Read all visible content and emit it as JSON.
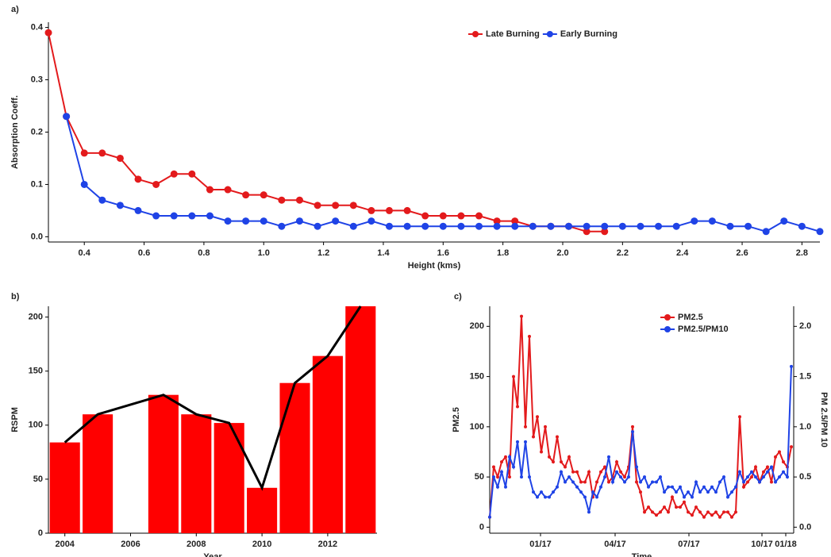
{
  "chart_data": [
    {
      "type": "line",
      "label": "a)",
      "x_label": "Height (kms)",
      "y_label": "Absorption Coeff.",
      "x": [
        0.28,
        0.34,
        0.4,
        0.46,
        0.52,
        0.58,
        0.64,
        0.7,
        0.76,
        0.82,
        0.88,
        0.94,
        1.0,
        1.06,
        1.12,
        1.18,
        1.24,
        1.3,
        1.36,
        1.42,
        1.48,
        1.54,
        1.6,
        1.66,
        1.72,
        1.78,
        1.84,
        1.9,
        1.96,
        2.02,
        2.08,
        2.14,
        2.2,
        2.26,
        2.32,
        2.38,
        2.44,
        2.5,
        2.56,
        2.62,
        2.68,
        2.74,
        2.8,
        2.86
      ],
      "series": [
        {
          "name": "Late Burning",
          "color": "#e31a1c",
          "values": [
            0.39,
            0.23,
            0.16,
            0.16,
            0.15,
            0.11,
            0.1,
            0.12,
            0.12,
            0.09,
            0.09,
            0.08,
            0.08,
            0.07,
            0.07,
            0.06,
            0.06,
            0.06,
            0.05,
            0.05,
            0.05,
            0.04,
            0.04,
            0.04,
            0.04,
            0.03,
            0.03,
            0.02,
            0.02,
            0.02,
            0.01,
            0.01,
            null,
            null,
            null,
            null,
            null,
            null,
            null,
            null,
            null,
            null,
            null,
            null
          ]
        },
        {
          "name": "Early Burning",
          "color": "#1f43e6",
          "values": [
            null,
            0.23,
            0.1,
            0.07,
            0.06,
            0.05,
            0.04,
            0.04,
            0.04,
            0.04,
            0.03,
            0.03,
            0.03,
            0.02,
            0.03,
            0.02,
            0.03,
            0.02,
            0.03,
            0.02,
            0.02,
            0.02,
            0.02,
            0.02,
            0.02,
            0.02,
            0.02,
            0.02,
            0.02,
            0.02,
            0.02,
            0.02,
            0.02,
            0.02,
            0.02,
            0.02,
            0.03,
            0.03,
            0.02,
            0.02,
            0.01,
            0.03,
            0.02,
            0.01
          ]
        }
      ],
      "xlim": [
        0.28,
        2.86
      ],
      "xticks": [
        0.4,
        0.6,
        0.8,
        {
          "value": 1,
          "label": "1.0"
        },
        1.2,
        1.4,
        1.6,
        1.8,
        {
          "value": 2,
          "label": "2.0"
        },
        2.2,
        2.4,
        2.6,
        2.8
      ],
      "ylim": [
        -0.01,
        0.41
      ],
      "yticks": [
        {
          "value": 0,
          "label": "0.0"
        },
        0.1,
        0.2,
        0.3,
        0.4
      ],
      "legend": "top",
      "grid": false
    },
    {
      "type": "bar",
      "label": "b)",
      "x_label": "Year",
      "y_label": "RSPM",
      "color": "#ff0000",
      "line_color": "#000000",
      "x": [
        2004,
        2005,
        2006,
        2007,
        2008,
        2009,
        2010,
        2011,
        2012,
        2013
      ],
      "values": [
        84,
        110,
        null,
        128,
        110,
        102,
        42,
        139,
        164,
        210
      ],
      "xlim": [
        2003.5,
        2013.5
      ],
      "xticks": [
        2004,
        2006,
        2008,
        2010,
        2012
      ],
      "ylim": [
        0,
        210
      ],
      "yticks": [
        0,
        50,
        100,
        150,
        200
      ],
      "grid": false
    },
    {
      "type": "line",
      "label": "c)",
      "x_label": "Time",
      "y_label": "PM2.5",
      "y2_label": "PM 2.5/PM 10",
      "x": [
        0,
        5,
        10,
        15,
        20,
        25,
        30,
        35,
        40,
        45,
        50,
        55,
        60,
        65,
        70,
        75,
        80,
        85,
        90,
        95,
        100,
        105,
        110,
        115,
        120,
        125,
        130,
        135,
        140,
        145,
        150,
        155,
        160,
        165,
        170,
        175,
        180,
        185,
        190,
        195,
        200,
        205,
        210,
        215,
        220,
        225,
        230,
        235,
        240,
        245,
        250,
        255,
        260,
        265,
        270,
        275,
        280,
        285,
        290,
        295,
        300,
        305,
        310,
        315,
        320,
        325,
        330,
        335,
        340,
        345,
        350,
        355,
        360,
        365,
        370,
        375,
        380
      ],
      "series": [
        {
          "name": "PM2.5",
          "color": "#e31a1c",
          "values": [
            10,
            60,
            50,
            65,
            70,
            50,
            150,
            120,
            210,
            100,
            190,
            90,
            110,
            75,
            100,
            70,
            65,
            90,
            65,
            60,
            70,
            55,
            55,
            45,
            45,
            55,
            30,
            45,
            55,
            60,
            45,
            50,
            65,
            55,
            50,
            60,
            100,
            45,
            35,
            15,
            20,
            15,
            12,
            15,
            20,
            15,
            30,
            20,
            20,
            25,
            15,
            12,
            20,
            15,
            10,
            15,
            12,
            15,
            10,
            15,
            15,
            10,
            15,
            110,
            40,
            45,
            50,
            60,
            45,
            55,
            60,
            45,
            70,
            75,
            65,
            60,
            80
          ]
        },
        {
          "name": "PM2.5/PM10",
          "color": "#1f43e6",
          "axis": "y2",
          "values": [
            0.1,
            0.5,
            0.4,
            0.55,
            0.4,
            0.7,
            0.6,
            0.85,
            0.5,
            0.85,
            0.5,
            0.35,
            0.3,
            0.35,
            0.3,
            0.3,
            0.35,
            0.4,
            0.55,
            0.45,
            0.5,
            0.45,
            0.4,
            0.35,
            0.3,
            0.15,
            0.35,
            0.3,
            0.4,
            0.5,
            0.7,
            0.45,
            0.55,
            0.5,
            0.45,
            0.5,
            0.95,
            0.6,
            0.45,
            0.5,
            0.4,
            0.45,
            0.45,
            0.5,
            0.35,
            0.4,
            0.4,
            0.35,
            0.4,
            0.3,
            0.35,
            0.3,
            0.45,
            0.35,
            0.4,
            0.35,
            0.4,
            0.35,
            0.45,
            0.5,
            0.3,
            0.35,
            0.4,
            0.55,
            0.45,
            0.5,
            0.55,
            0.5,
            0.45,
            0.5,
            0.55,
            0.6,
            0.45,
            0.5,
            0.55,
            0.5,
            1.6
          ]
        }
      ],
      "xlim": [
        0,
        383
      ],
      "xticks": [
        {
          "value": 64,
          "label": "01/17"
        },
        {
          "value": 158,
          "label": "04/17"
        },
        {
          "value": 251,
          "label": "07/17"
        },
        {
          "value": 343,
          "label": "10/17"
        },
        {
          "value": 373,
          "label": "01/18"
        }
      ],
      "ylim": [
        -6,
        220
      ],
      "yticks": [
        0,
        50,
        100,
        150,
        200
      ],
      "y2lim": [
        -0.06,
        2.2
      ],
      "y2ticks": [
        {
          "value": 0,
          "label": "0.0"
        },
        0.5,
        {
          "value": 1,
          "label": "1.0"
        },
        1.5,
        {
          "value": 2,
          "label": "2.0"
        }
      ],
      "legend": "top",
      "grid": false
    }
  ]
}
